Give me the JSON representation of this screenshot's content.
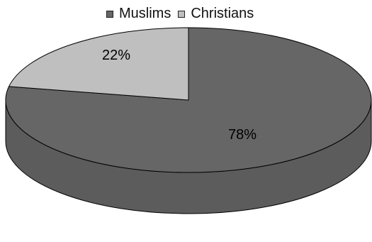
{
  "chart_data": {
    "type": "pie",
    "title": "",
    "legend_position": "top",
    "slices": [
      {
        "name": "Muslims",
        "value": 78,
        "label": "78%",
        "color": "#666666"
      },
      {
        "name": "Christians",
        "value": 22,
        "label": "22%",
        "color": "#bfbfbf"
      }
    ],
    "style": "3d"
  },
  "legend": {
    "items": [
      {
        "label": "Muslims",
        "color": "#666666"
      },
      {
        "label": "Christians",
        "color": "#bfbfbf"
      }
    ]
  }
}
